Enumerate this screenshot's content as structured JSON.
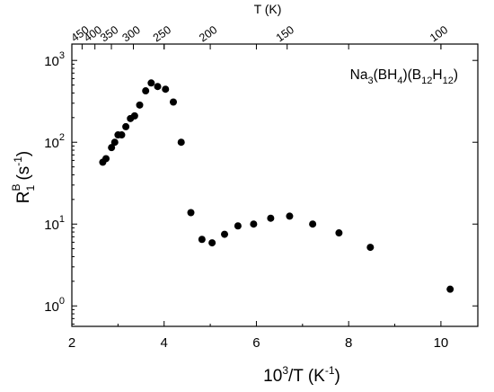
{
  "chart_data": {
    "type": "scatter",
    "title": "",
    "annotation": {
      "parts": [
        {
          "text": "Na",
          "sub": false
        },
        {
          "text": "3",
          "sub": true
        },
        {
          "text": "(BH",
          "sub": false
        },
        {
          "text": "4",
          "sub": true
        },
        {
          "text": ")(B",
          "sub": false
        },
        {
          "text": "12",
          "sub": true
        },
        {
          "text": "H",
          "sub": false
        },
        {
          "text": "12",
          "sub": true
        },
        {
          "text": ")",
          "sub": false
        }
      ]
    },
    "xlabel": {
      "base": "10",
      "sup": "3",
      "mid": "/T  (K",
      "sup2": "-1",
      "end": ")"
    },
    "ylabel": {
      "base": "R",
      "sup": "B",
      "sub": "1",
      "mid": "  (s",
      "sup2": "-1",
      "end": ")"
    },
    "top_axis_label": "T  (K)",
    "xlim": [
      2,
      10.8
    ],
    "ylim_log10": [
      -0.25,
      3.2
    ],
    "y_scale": "log",
    "x_ticks": [
      2,
      4,
      6,
      8,
      10
    ],
    "x_tick_labels": [
      "2",
      "4",
      "6",
      "8",
      "10"
    ],
    "y_ticks": [
      {
        "label_base": "10",
        "label_exp": "0",
        "value": 1
      },
      {
        "label_base": "10",
        "label_exp": "1",
        "value": 10
      },
      {
        "label_base": "10",
        "label_exp": "2",
        "value": 100
      },
      {
        "label_base": "10",
        "label_exp": "3",
        "value": 1000
      }
    ],
    "top_ticks": [
      {
        "T": 450,
        "label": "450"
      },
      {
        "T": 400,
        "label": "400"
      },
      {
        "T": 350,
        "label": "350"
      },
      {
        "T": 300,
        "label": "300"
      },
      {
        "T": 250,
        "label": "250"
      },
      {
        "T": 200,
        "label": "200"
      },
      {
        "T": 150,
        "label": "150"
      },
      {
        "T": 100,
        "label": "100"
      }
    ],
    "series": [
      {
        "marker": "filled-circle",
        "color": "#000000",
        "points": [
          {
            "x": 2.67,
            "y": 57
          },
          {
            "x": 2.74,
            "y": 63
          },
          {
            "x": 2.86,
            "y": 86
          },
          {
            "x": 2.93,
            "y": 100
          },
          {
            "x": 3.0,
            "y": 123
          },
          {
            "x": 3.08,
            "y": 123
          },
          {
            "x": 3.17,
            "y": 155
          },
          {
            "x": 3.27,
            "y": 195
          },
          {
            "x": 3.36,
            "y": 210
          },
          {
            "x": 3.47,
            "y": 285
          },
          {
            "x": 3.6,
            "y": 425
          },
          {
            "x": 3.72,
            "y": 530
          },
          {
            "x": 3.86,
            "y": 480
          },
          {
            "x": 4.03,
            "y": 445
          },
          {
            "x": 4.2,
            "y": 310
          },
          {
            "x": 4.37,
            "y": 100
          },
          {
            "x": 4.58,
            "y": 13.8
          },
          {
            "x": 4.82,
            "y": 6.5
          },
          {
            "x": 5.04,
            "y": 5.9
          },
          {
            "x": 5.31,
            "y": 7.5
          },
          {
            "x": 5.6,
            "y": 9.5
          },
          {
            "x": 5.94,
            "y": 10.0
          },
          {
            "x": 6.31,
            "y": 11.8
          },
          {
            "x": 6.72,
            "y": 12.5
          },
          {
            "x": 7.22,
            "y": 10.0
          },
          {
            "x": 7.79,
            "y": 7.8
          },
          {
            "x": 8.47,
            "y": 5.2
          },
          {
            "x": 10.2,
            "y": 1.6
          }
        ]
      }
    ]
  }
}
